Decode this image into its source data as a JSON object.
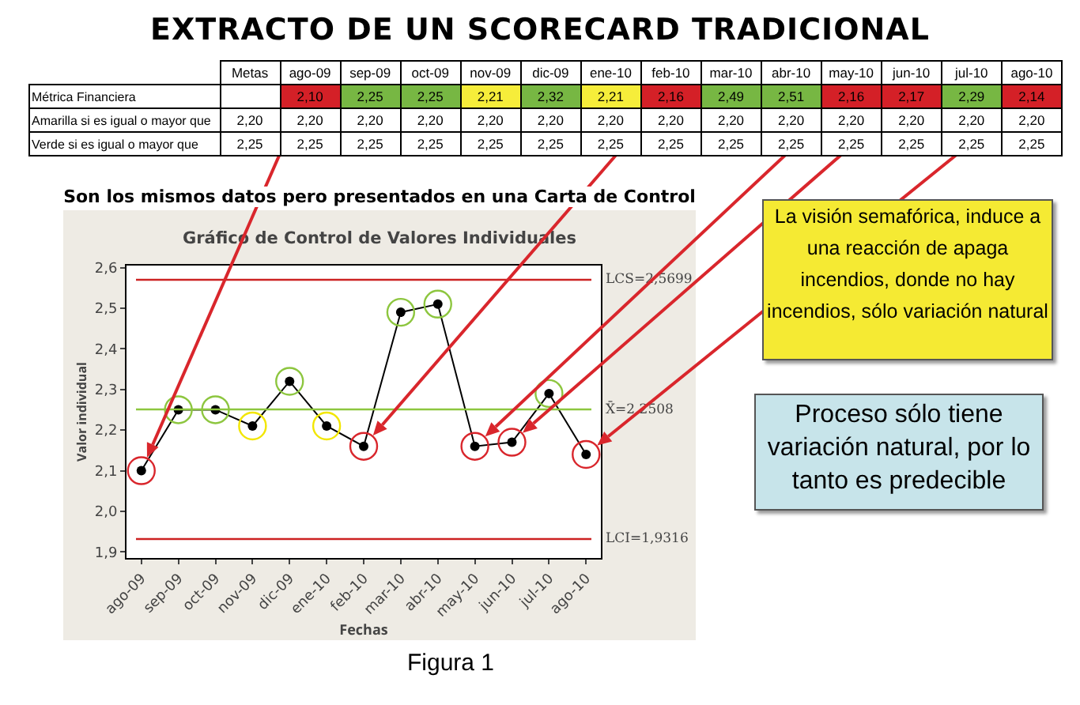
{
  "chart_data": [
    {
      "type": "heatmap",
      "title": "EXTRACTO DE UN SCORECARD TRADICIONAL",
      "categories": [
        "Metas",
        "ago-09",
        "sep-09",
        "oct-09",
        "nov-09",
        "dic-09",
        "ene-10",
        "feb-10",
        "mar-10",
        "abr-10",
        "may-10",
        "jun-10",
        "jul-10",
        "ago-10"
      ],
      "y_categories": [
        "Métrica Financiera",
        "Amarilla si es igual o mayor que",
        "Verde si es igual o mayor que"
      ],
      "cells": [
        [
          null,
          2.1,
          2.25,
          2.25,
          2.21,
          2.32,
          2.21,
          2.16,
          2.49,
          2.51,
          2.16,
          2.17,
          2.29,
          2.14
        ],
        [
          2.2,
          2.2,
          2.2,
          2.2,
          2.2,
          2.2,
          2.2,
          2.2,
          2.2,
          2.2,
          2.2,
          2.2,
          2.2,
          2.2
        ],
        [
          2.25,
          2.25,
          2.25,
          2.25,
          2.25,
          2.25,
          2.25,
          2.25,
          2.25,
          2.25,
          2.25,
          2.25,
          2.25,
          2.25
        ]
      ],
      "cell_labels": [
        [
          null,
          "2,10",
          "2,25",
          "2,25",
          "2,21",
          "2,32",
          "2,21",
          "2,16",
          "2,49",
          "2,51",
          "2,16",
          "2,17",
          "2,29",
          "2,14"
        ],
        [
          "2,20",
          "2,20",
          "2,20",
          "2,20",
          "2,20",
          "2,20",
          "2,20",
          "2,20",
          "2,20",
          "2,20",
          "2,20",
          "2,20",
          "2,20",
          "2,20"
        ],
        [
          "2,25",
          "2,25",
          "2,25",
          "2,25",
          "2,25",
          "2,25",
          "2,25",
          "2,25",
          "2,25",
          "2,25",
          "2,25",
          "2,25",
          "2,25",
          "2,25"
        ]
      ]
    },
    {
      "type": "line",
      "title": "Gráfico de Control de Valores Individuales",
      "subtitle": "Son los mismos datos pero presentados en una Carta de Control",
      "xlabel": "Fechas",
      "ylabel": "Valor individual",
      "categories": [
        "ago-09",
        "sep-09",
        "oct-09",
        "nov-09",
        "dic-09",
        "ene-10",
        "feb-10",
        "mar-10",
        "abr-10",
        "may-10",
        "jun-10",
        "jul-10",
        "ago-10"
      ],
      "series": [
        {
          "type": "line",
          "color": "#000000",
          "values": [
            2.1,
            2.25,
            2.25,
            2.21,
            2.32,
            2.21,
            2.16,
            2.49,
            2.51,
            2.16,
            2.17,
            2.29,
            2.14
          ]
        },
        {
          "type": "scatter",
          "colors": [
            "#d9262c",
            "#8dc63f",
            "#8dc63f",
            "#f2e600",
            "#8dc63f",
            "#f2e600",
            "#d9262c",
            "#8dc63f",
            "#8dc63f",
            "#d9262c",
            "#d9262c",
            "#8dc63f",
            "#d9262c"
          ],
          "values": [
            2.1,
            2.25,
            2.25,
            2.21,
            2.32,
            2.21,
            2.16,
            2.49,
            2.51,
            2.16,
            2.17,
            2.29,
            2.14
          ]
        }
      ],
      "ylim": [
        1.885,
        2.605
      ],
      "yticks": [
        {
          "value": 1.9,
          "label": "1,9"
        },
        {
          "value": 2.0,
          "label": "2,0"
        },
        {
          "value": 2.1,
          "label": "2,1"
        },
        {
          "value": 2.2,
          "label": "2,2"
        },
        {
          "value": 2.3,
          "label": "2,3"
        },
        {
          "value": 2.4,
          "label": "2,4"
        },
        {
          "value": 2.5,
          "label": "2,5"
        },
        {
          "value": 2.6,
          "label": "2,6"
        }
      ],
      "ref_lines": [
        {
          "axis": "y",
          "value": 2.5699,
          "label": "LCS=2,5699",
          "color": "#cc2222"
        },
        {
          "axis": "y",
          "value": 2.2508,
          "label": "X̄=2,2508",
          "color": "#8dc63f"
        },
        {
          "axis": "y",
          "value": 1.9316,
          "label": "LCI=1,9316",
          "color": "#cc2222"
        }
      ],
      "marker": "circle",
      "grid": false,
      "legend": false,
      "annotations": [
        "La visión semafórica, induce a una reacción de apaga incendios, donde no hay incendios, sólo variación natural",
        "Proceso sólo tiene variación natural, por lo tanto es predecible",
        "Figura 1"
      ]
    }
  ]
}
